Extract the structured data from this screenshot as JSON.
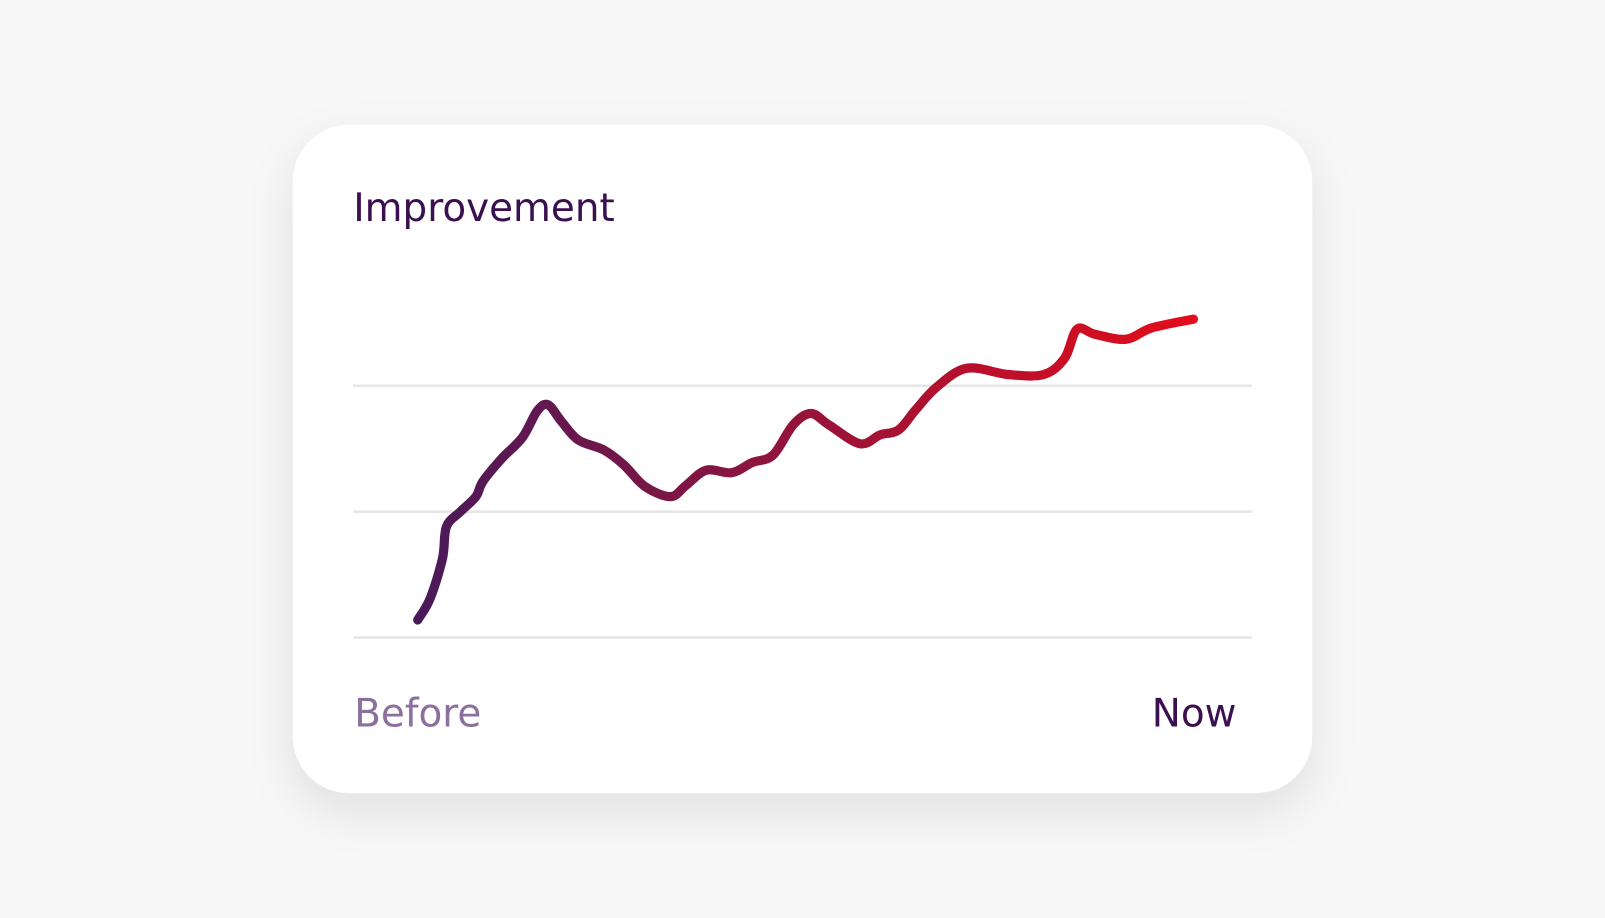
{
  "chart_data": {
    "type": "line",
    "title": "Improvement",
    "xlabels": [
      "Before",
      "Now"
    ],
    "x": [
      0,
      1.6,
      3.2,
      3.7,
      5.5,
      7.5,
      8.4,
      10.8,
      13.5,
      15.4,
      16.8,
      18.5,
      20.7,
      24.0,
      26.6,
      29.3,
      32.6,
      34.6,
      37.2,
      40.5,
      43.1,
      45.8,
      48.4,
      50.7,
      53.0,
      57.0,
      59.6,
      62.0,
      64.2,
      66.9,
      70.8,
      76.1,
      80.7,
      83.4,
      85.0,
      87.3,
      91.3,
      94.6,
      100
    ],
    "values": [
      0.14,
      0.31,
      0.63,
      0.88,
      1.0,
      1.12,
      1.24,
      1.42,
      1.59,
      1.8,
      1.85,
      1.72,
      1.57,
      1.49,
      1.37,
      1.2,
      1.12,
      1.21,
      1.33,
      1.31,
      1.39,
      1.45,
      1.69,
      1.78,
      1.69,
      1.54,
      1.61,
      1.65,
      1.81,
      1.99,
      2.14,
      2.09,
      2.09,
      2.22,
      2.45,
      2.41,
      2.37,
      2.46,
      2.53
    ],
    "colors": [
      "#4a1a5a",
      "#e30c1a"
    ],
    "xlim": [
      0,
      100
    ],
    "ylim": [
      0,
      2.6
    ],
    "yticks": [
      0,
      1,
      2
    ],
    "grid": true
  }
}
